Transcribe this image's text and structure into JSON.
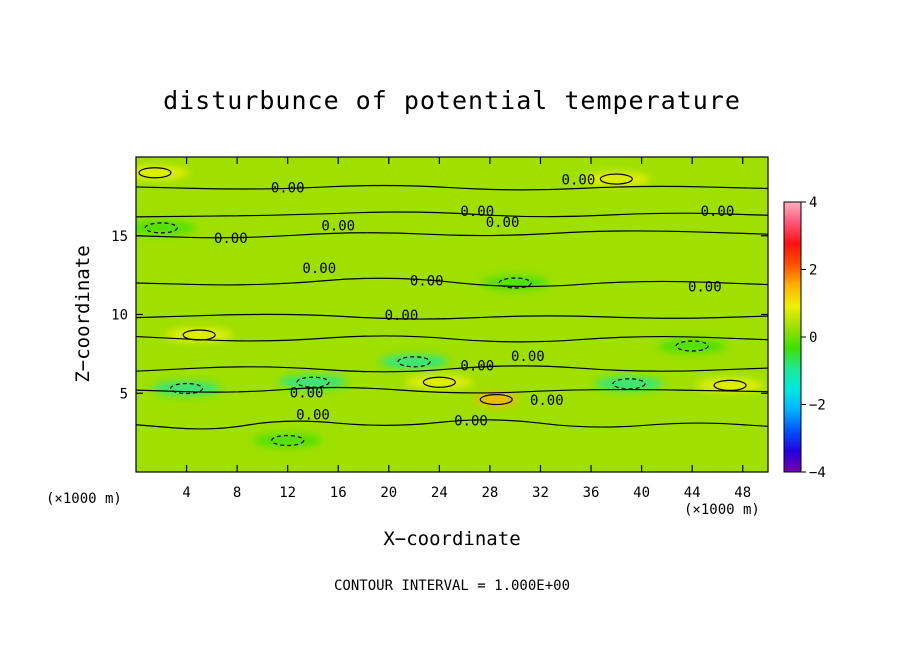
{
  "chart_data": {
    "type": "heatmap",
    "title": "disturbunce of potential temperature",
    "xlabel": "X−coordinate",
    "ylabel": "Z−coordinate",
    "x_unit": "(×1000 m)",
    "z_unit": "(×1000 m)",
    "x_ticks": [
      4,
      8,
      12,
      16,
      20,
      24,
      28,
      32,
      36,
      40,
      44,
      48
    ],
    "y_ticks": [
      5,
      10,
      15
    ],
    "xlim": [
      0,
      50
    ],
    "ylim": [
      0,
      20
    ],
    "colorbar": {
      "ticks": [
        4,
        2,
        0,
        -2,
        -4
      ],
      "tick_labels": [
        "4",
        "2",
        "0",
        "−2",
        "−4"
      ],
      "range": [
        -4,
        4
      ],
      "colors": [
        "#7a00aa",
        "#2200dd",
        "#0055ff",
        "#00b4ff",
        "#00e8e0",
        "#20e890",
        "#40e000",
        "#9fe000",
        "#f0f000",
        "#ffb000",
        "#ff5000",
        "#ff1010",
        "#ff5577",
        "#ffb0c0"
      ]
    },
    "contour_interval": "CONTOUR INTERVAL = 1.000E+00",
    "contour_label": "0.00",
    "background_value": 0,
    "anomalies": [
      {
        "x": 1.5,
        "z": 19.0,
        "value": 1.2
      },
      {
        "x": 38.0,
        "z": 18.6,
        "value": 0.9
      },
      {
        "x": 2.0,
        "z": 15.5,
        "value": -0.6
      },
      {
        "x": 5.0,
        "z": 8.7,
        "value": 0.8
      },
      {
        "x": 4.0,
        "z": 5.3,
        "value": -1.2
      },
      {
        "x": 14.0,
        "z": 5.7,
        "value": -0.7
      },
      {
        "x": 24.0,
        "z": 5.7,
        "value": 1.0
      },
      {
        "x": 28.5,
        "z": 4.6,
        "value": 1.8
      },
      {
        "x": 39.0,
        "z": 5.6,
        "value": -1.1
      },
      {
        "x": 47.0,
        "z": 5.5,
        "value": 1.2
      },
      {
        "x": 22.0,
        "z": 7.0,
        "value": -0.8
      },
      {
        "x": 30.0,
        "z": 12.0,
        "value": -0.4
      },
      {
        "x": 12.0,
        "z": 2.0,
        "value": -0.3
      },
      {
        "x": 44.0,
        "z": 8.0,
        "value": -0.5
      }
    ],
    "contour_labels_at": [
      {
        "x": 12.0,
        "z": 18.0
      },
      {
        "x": 35.0,
        "z": 18.5
      },
      {
        "x": 27.0,
        "z": 16.5
      },
      {
        "x": 29.0,
        "z": 15.8
      },
      {
        "x": 46.0,
        "z": 16.5
      },
      {
        "x": 16.0,
        "z": 15.6
      },
      {
        "x": 7.5,
        "z": 14.8
      },
      {
        "x": 14.5,
        "z": 12.9
      },
      {
        "x": 23.0,
        "z": 12.1
      },
      {
        "x": 45.0,
        "z": 11.7
      },
      {
        "x": 21.0,
        "z": 9.9
      },
      {
        "x": 27.0,
        "z": 6.7
      },
      {
        "x": 31.0,
        "z": 7.3
      },
      {
        "x": 13.5,
        "z": 5.0
      },
      {
        "x": 14.0,
        "z": 3.6
      },
      {
        "x": 26.5,
        "z": 3.2
      },
      {
        "x": 32.5,
        "z": 4.5
      }
    ],
    "grid": false
  }
}
